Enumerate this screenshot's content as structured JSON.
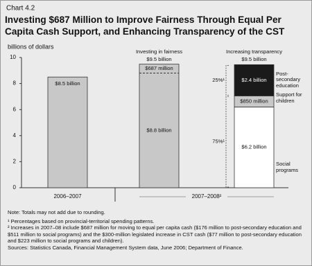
{
  "chart_data": {
    "type": "stacked_bar",
    "chart_number": "Chart 4.2",
    "title": "Investing $687 Million to Improve Fairness Through Equal Per Capita Cash Support, and Enhancing Transparency of the CST",
    "y_label": "billions of dollars",
    "ylim": [
      0,
      10
    ],
    "yticks": [
      0,
      2,
      4,
      6,
      8,
      10
    ],
    "groups": [
      {
        "label": "2006–2007",
        "bars": [
          {
            "segments": [
              {
                "value": 8.5,
                "value_label": "$8.5 billion",
                "color": "#c8c8c8"
              }
            ]
          }
        ]
      },
      {
        "label": "2007–2008²",
        "bars": [
          {
            "header": "Investing in fairness",
            "total": 9.5,
            "total_label": "$9.5 billion",
            "segments": [
              {
                "value": 8.8,
                "value_label": "$8.8 billion",
                "color": "#c8c8c8"
              },
              {
                "value": 0.687,
                "value_label": "$687 million",
                "color": "#c8c8c8"
              }
            ]
          },
          {
            "header": "Increasing transparency",
            "total": 9.5,
            "total_label": "$9.5 billion",
            "segments": [
              {
                "name": "Social programs",
                "value": 6.2,
                "value_label": "$6.2 billion",
                "color": "#ffffff"
              },
              {
                "name": "Support for children",
                "value": 0.85,
                "value_label": "$850 million",
                "color": "#c8c8c8"
              },
              {
                "name": "Post-secondary education",
                "value": 2.4,
                "value_label": "$2.4 billion",
                "color": "#1a1a1a"
              }
            ],
            "shares": [
              {
                "value": 75,
                "label": "75%¹"
              },
              {
                "value": 25,
                "label": "25%¹"
              }
            ]
          }
        ]
      }
    ],
    "notes": [
      "Note: Totals may not add due to rounding.",
      "¹ Percentages based on provincial-territorial spending patterns.",
      "² Increases in 2007–08 include $687 million for moving to equal per capita cash ($176 million to post-secondary education and $511 million to social programs) and the $300-million legislated increase in CST cash ($77 million to post-secondary education and $223 million to social programs and children).",
      "Sources: Statistics Canada, Financial Management System data, June 2006; Department of Finance."
    ]
  }
}
